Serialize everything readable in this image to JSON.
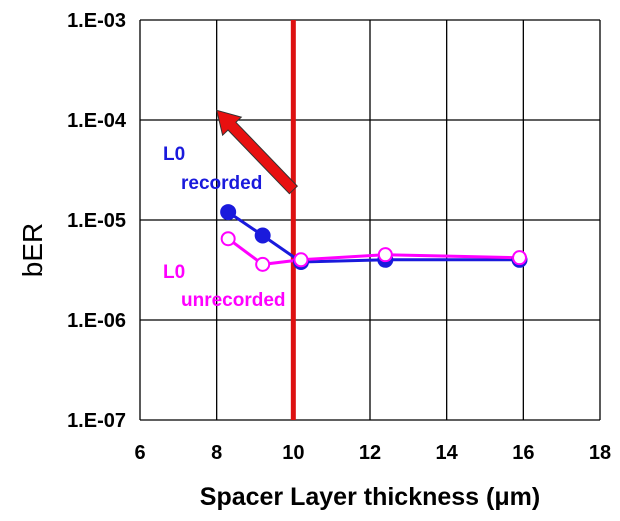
{
  "chart_data": {
    "type": "line",
    "xlabel": "Spacer Layer thickness (μm)",
    "ylabel": "bER",
    "x_ticks": [
      "6",
      "8",
      "10",
      "12",
      "14",
      "16",
      "18"
    ],
    "y_ticks": [
      "1.E-07",
      "1.E-06",
      "1.E-05",
      "1.E-04",
      "1.E-03"
    ],
    "xlim": [
      6,
      18
    ],
    "ylim": [
      1e-07,
      0.001
    ],
    "yscale": "log",
    "grid": true,
    "series": [
      {
        "name": "L0 recorded",
        "label_lines": [
          "L0",
          "recorded"
        ],
        "color": "#1a1adc",
        "marker": "filled-circle",
        "x": [
          8.3,
          9.2,
          10.2,
          12.4,
          15.9
        ],
        "y": [
          1.2e-05,
          7e-06,
          3.8e-06,
          4e-06,
          4e-06
        ]
      },
      {
        "name": "L0 unrecorded",
        "label_lines": [
          "L0",
          "unrecorded"
        ],
        "color": "#ff00ff",
        "marker": "open-circle",
        "x": [
          8.3,
          9.2,
          10.2,
          12.4,
          15.9
        ],
        "y": [
          6.5e-06,
          3.6e-06,
          4e-06,
          4.5e-06,
          4.2e-06
        ]
      }
    ],
    "reference_line": {
      "x": 10,
      "color": "#dd1111"
    },
    "arrow": {
      "color": "#e81010",
      "from": [
        10,
        2e-05
      ],
      "to": [
        8,
        0.000125
      ]
    }
  }
}
